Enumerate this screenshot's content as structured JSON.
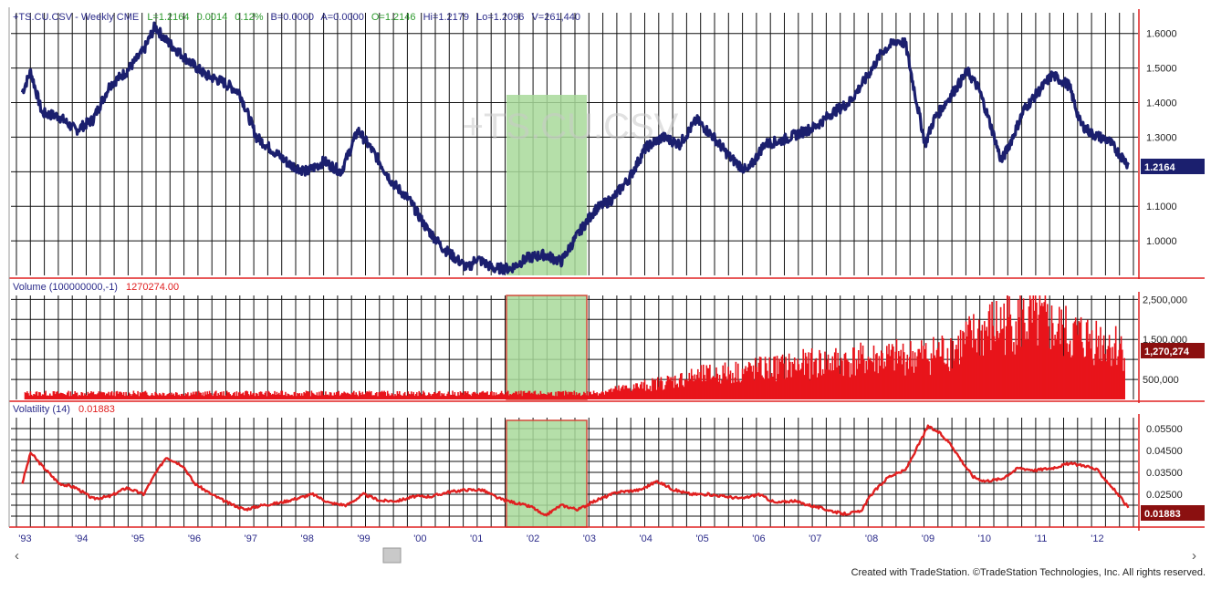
{
  "header": {
    "symbol_info": "+TS.CU.CSV - Weekly  CME",
    "last": "L=1.2164",
    "change": "0.0014",
    "change_pct": "0.12%",
    "bid": "B=0.0000",
    "ask": "A=0.0000",
    "open": "O=1.2146",
    "high": "Hi=1.2179",
    "low": "Lo=1.2096",
    "volume": "V=261,440"
  },
  "watermark": "+TS.CU.CSV",
  "panels": {
    "volume": {
      "label": "Volume (100000000,-1)",
      "value": "1270274.00"
    },
    "volatility": {
      "label": "Volatility (14)",
      "value": "0.01883"
    }
  },
  "badges": {
    "price": "1.2164",
    "volume": "1,270,274",
    "volatility": "0.01883"
  },
  "colors": {
    "price_line": "#1b1f6e",
    "volume_bars": "#e8141b",
    "volatility_line": "#e02020",
    "highlight_fill": "#a8d99a",
    "highlight_border": "#d44a3a",
    "grid": "#111111",
    "axis_red": "#e02020",
    "header_green": "#2e9a2e",
    "header_blue": "#2b2b8a"
  },
  "scrollbar": {
    "left_arrow": "‹",
    "right_arrow": "›"
  },
  "footer": "Created with TradeStation. ©TradeStation Technologies, Inc. All rights reserved.",
  "chart_data": [
    {
      "type": "line",
      "panel": "price",
      "x_ticks": [
        "'93",
        "'94",
        "'95",
        "'96",
        "'97",
        "'98",
        "'99",
        "'00",
        "'01",
        "'02",
        "'03",
        "'04",
        "'05",
        "'06",
        "'07",
        "'08",
        "'09",
        "'10",
        "'11",
        "'12"
      ],
      "ylim": [
        0.9,
        1.66
      ],
      "y_ticks": [
        "1.6000",
        "1.5000",
        "1.4000",
        "1.3000",
        "1.1000",
        "1.0000"
      ],
      "series": [
        {
          "x": [
            1992.95,
            1993.1,
            1993.3,
            1993.6,
            1993.9,
            1994.2,
            1994.5,
            1994.8,
            1995.1,
            1995.3,
            1995.5,
            1995.7,
            1995.9,
            1996.2,
            1996.5,
            1996.8,
            1997.1,
            1997.4,
            1997.7,
            1998.0,
            1998.3,
            1998.6,
            1998.9,
            1999.2,
            1999.5,
            1999.8,
            2000.1,
            2000.4,
            2000.7,
            2000.85,
            2001.0,
            2001.3,
            2001.6,
            2001.9,
            2002.2,
            2002.5,
            2002.8,
            2003.1,
            2003.4,
            2003.7,
            2004.0,
            2004.3,
            2004.6,
            2004.9,
            2005.2,
            2005.5,
            2005.8,
            2006.1,
            2006.4,
            2006.7,
            2007.0,
            2007.3,
            2007.6,
            2007.9,
            2008.2,
            2008.45,
            2008.6,
            2008.8,
            2008.95,
            2009.1,
            2009.4,
            2009.7,
            2009.9,
            2010.1,
            2010.3,
            2010.5,
            2010.7,
            2010.9,
            2011.2,
            2011.5,
            2011.7,
            2011.9,
            2012.2,
            2012.4,
            2012.55
          ],
          "y": [
            1.43,
            1.49,
            1.37,
            1.36,
            1.32,
            1.35,
            1.45,
            1.49,
            1.55,
            1.62,
            1.58,
            1.55,
            1.52,
            1.48,
            1.46,
            1.43,
            1.3,
            1.26,
            1.22,
            1.2,
            1.23,
            1.2,
            1.32,
            1.25,
            1.17,
            1.12,
            1.04,
            0.98,
            0.94,
            0.92,
            0.95,
            0.92,
            0.92,
            0.95,
            0.96,
            0.94,
            1.02,
            1.09,
            1.12,
            1.18,
            1.27,
            1.3,
            1.28,
            1.35,
            1.3,
            1.24,
            1.2,
            1.28,
            1.29,
            1.31,
            1.33,
            1.37,
            1.4,
            1.47,
            1.55,
            1.58,
            1.57,
            1.4,
            1.28,
            1.35,
            1.42,
            1.49,
            1.44,
            1.34,
            1.23,
            1.3,
            1.38,
            1.42,
            1.48,
            1.45,
            1.34,
            1.31,
            1.29,
            1.25,
            1.22
          ]
        }
      ]
    },
    {
      "type": "bar",
      "panel": "volume",
      "ylim": [
        0,
        2600000
      ],
      "y_ticks": [
        "2,500,000",
        "1,500,000",
        "500,000"
      ],
      "series": [
        {
          "name": "Volume (100000000,-1)",
          "x": [
            1993.0,
            1995.0,
            1997.0,
            1999.0,
            2001.0,
            2002.0,
            2003.0,
            2004.0,
            2005.0,
            2006.0,
            2007.0,
            2008.0,
            2009.0,
            2009.5,
            2010.0,
            2010.5,
            2011.0,
            2011.5,
            2012.0,
            2012.5
          ],
          "values": [
            150000,
            150000,
            150000,
            150000,
            150000,
            150000,
            150000,
            350000,
            600000,
            750000,
            900000,
            1000000,
            1100000,
            1300000,
            1700000,
            2000000,
            1900000,
            1600000,
            1500000,
            1270274
          ]
        }
      ]
    },
    {
      "type": "line",
      "panel": "volatility",
      "ylim": [
        0.01,
        0.06
      ],
      "y_ticks": [
        "0.05500",
        "0.04500",
        "0.03500",
        "0.02500"
      ],
      "series": [
        {
          "name": "Volatility (14)",
          "x": [
            1992.95,
            1993.1,
            1993.3,
            1993.6,
            1993.9,
            1994.2,
            1994.5,
            1994.8,
            1995.1,
            1995.3,
            1995.5,
            1995.8,
            1996.0,
            1996.3,
            1996.6,
            1996.9,
            1997.2,
            1997.5,
            1997.8,
            1998.1,
            1998.4,
            1998.7,
            1999.0,
            1999.3,
            1999.6,
            1999.9,
            2000.2,
            2000.5,
            2000.8,
            2001.1,
            2001.4,
            2001.7,
            2002.0,
            2002.2,
            2002.5,
            2002.8,
            2003.1,
            2003.5,
            2003.9,
            2004.2,
            2004.5,
            2004.8,
            2005.1,
            2005.4,
            2005.7,
            2006.0,
            2006.3,
            2006.6,
            2006.9,
            2007.2,
            2007.5,
            2007.8,
            2008.0,
            2008.3,
            2008.6,
            2008.8,
            2009.0,
            2009.2,
            2009.4,
            2009.6,
            2009.8,
            2010.0,
            2010.3,
            2010.6,
            2010.9,
            2011.2,
            2011.5,
            2011.8,
            2012.0,
            2012.3,
            2012.55
          ],
          "values": [
            0.03,
            0.044,
            0.038,
            0.03,
            0.028,
            0.023,
            0.024,
            0.028,
            0.025,
            0.034,
            0.042,
            0.038,
            0.03,
            0.025,
            0.021,
            0.018,
            0.02,
            0.021,
            0.023,
            0.025,
            0.021,
            0.02,
            0.025,
            0.022,
            0.022,
            0.024,
            0.024,
            0.026,
            0.027,
            0.027,
            0.023,
            0.021,
            0.019,
            0.015,
            0.02,
            0.018,
            0.022,
            0.026,
            0.027,
            0.031,
            0.027,
            0.025,
            0.025,
            0.024,
            0.023,
            0.025,
            0.021,
            0.022,
            0.02,
            0.018,
            0.016,
            0.017,
            0.025,
            0.033,
            0.036,
            0.046,
            0.056,
            0.053,
            0.048,
            0.04,
            0.033,
            0.031,
            0.032,
            0.037,
            0.036,
            0.037,
            0.039,
            0.038,
            0.036,
            0.027,
            0.01883
          ]
        }
      ]
    }
  ]
}
